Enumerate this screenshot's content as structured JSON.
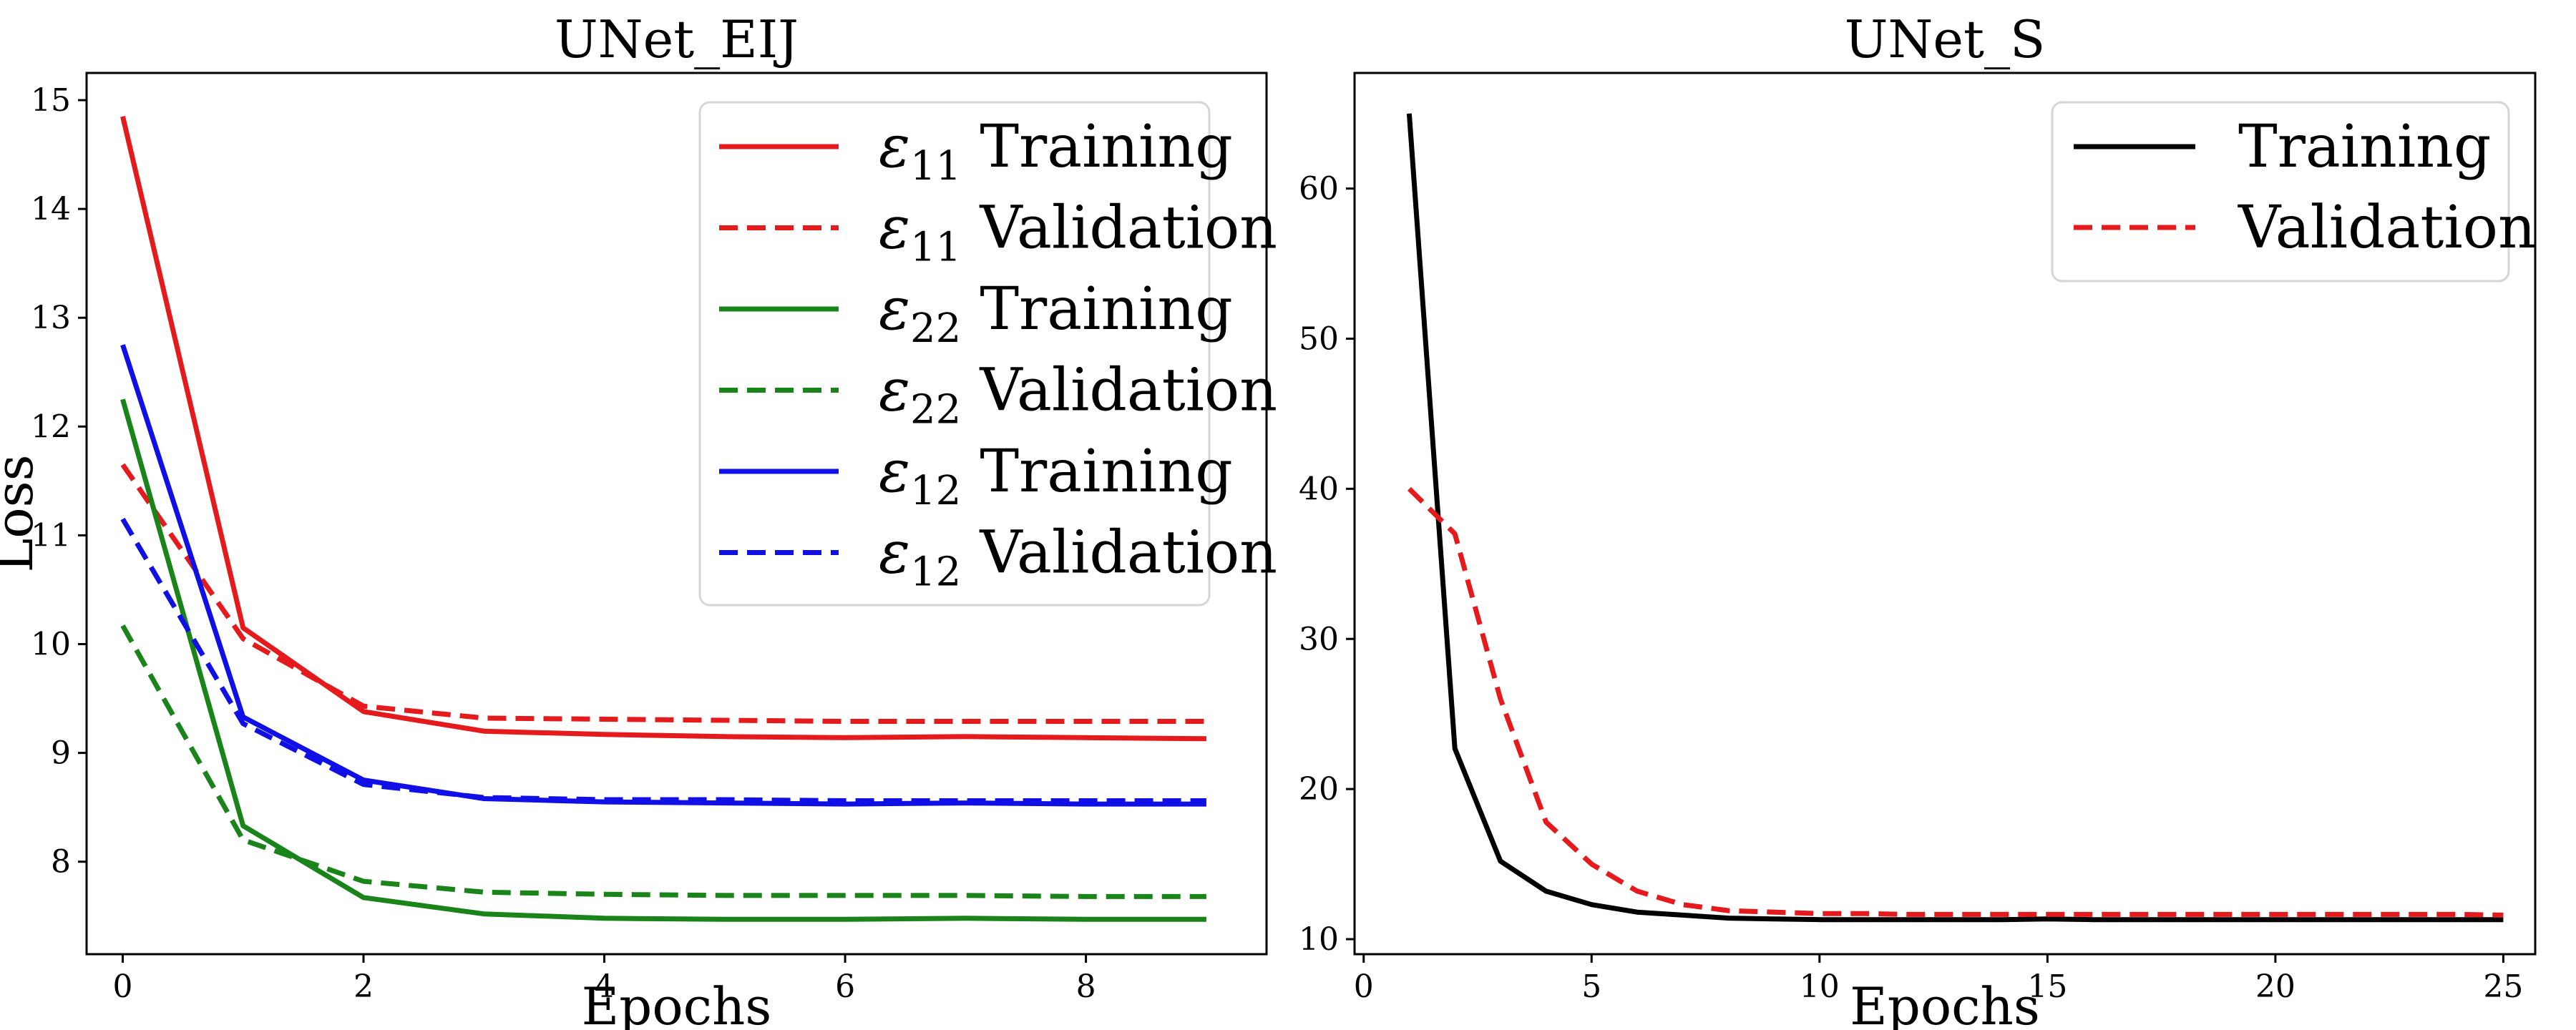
{
  "chart_data": [
    {
      "type": "line",
      "title": "UNet_EIJ",
      "xlabel": "Epochs",
      "ylabel": "Loss",
      "xlim": [
        -0.3,
        9.5
      ],
      "ylim": [
        7.15,
        15.25
      ],
      "xticks": [
        0,
        2,
        4,
        6,
        8
      ],
      "yticks": [
        8,
        9,
        10,
        11,
        12,
        13,
        14,
        15
      ],
      "legend_position": "top-right",
      "x": [
        0,
        1,
        2,
        3,
        4,
        5,
        6,
        7,
        8,
        9
      ],
      "series": [
        {
          "name": "ε11 Training",
          "symbol": "ε",
          "sub": "11",
          "label": "Training",
          "color": "#e41a1c",
          "dash": "solid",
          "values": [
            14.85,
            10.15,
            9.38,
            9.2,
            9.17,
            9.15,
            9.14,
            9.15,
            9.14,
            9.13
          ]
        },
        {
          "name": "ε11 Validation",
          "symbol": "ε",
          "sub": "11",
          "label": "Validation",
          "color": "#e41a1c",
          "dash": "dashed",
          "values": [
            11.65,
            10.05,
            9.43,
            9.32,
            9.31,
            9.3,
            9.29,
            9.29,
            9.29,
            9.29
          ]
        },
        {
          "name": "ε22 Training",
          "symbol": "ε",
          "sub": "22",
          "label": "Training",
          "color": "#1a841a",
          "dash": "solid",
          "values": [
            12.25,
            8.33,
            7.67,
            7.52,
            7.48,
            7.47,
            7.47,
            7.48,
            7.47,
            7.47
          ]
        },
        {
          "name": "ε22 Validation",
          "symbol": "ε",
          "sub": "22",
          "label": "Validation",
          "color": "#1a841a",
          "dash": "dashed",
          "values": [
            10.17,
            8.2,
            7.82,
            7.72,
            7.7,
            7.69,
            7.69,
            7.69,
            7.68,
            7.68
          ]
        },
        {
          "name": "ε12 Training",
          "symbol": "ε",
          "sub": "12",
          "label": "Training",
          "color": "#1010e6",
          "dash": "solid",
          "values": [
            12.75,
            9.33,
            8.75,
            8.58,
            8.55,
            8.54,
            8.53,
            8.54,
            8.53,
            8.53
          ]
        },
        {
          "name": "ε12 Validation",
          "symbol": "ε",
          "sub": "12",
          "label": "Validation",
          "color": "#1010e6",
          "dash": "dashed",
          "values": [
            11.15,
            9.27,
            8.71,
            8.59,
            8.57,
            8.57,
            8.56,
            8.56,
            8.56,
            8.56
          ]
        }
      ]
    },
    {
      "type": "line",
      "title": "UNet_S",
      "xlabel": "Epochs",
      "ylabel": "",
      "xlim": [
        -0.2,
        25.7
      ],
      "ylim": [
        9.0,
        67.7
      ],
      "xticks": [
        0,
        5,
        10,
        15,
        20,
        25
      ],
      "yticks": [
        10,
        20,
        30,
        40,
        50,
        60
      ],
      "legend_position": "top-right",
      "x": [
        1,
        2,
        3,
        4,
        5,
        6,
        7,
        8,
        9,
        10,
        11,
        12,
        13,
        14,
        15,
        16,
        17,
        18,
        19,
        20,
        21,
        22,
        23,
        24,
        25
      ],
      "series": [
        {
          "name": "Training",
          "symbol": "",
          "sub": "",
          "label": "Training",
          "color": "#000000",
          "dash": "solid",
          "values": [
            65.0,
            22.7,
            15.2,
            13.2,
            12.3,
            11.8,
            11.6,
            11.4,
            11.35,
            11.3,
            11.3,
            11.3,
            11.3,
            11.3,
            11.35,
            11.3,
            11.3,
            11.3,
            11.3,
            11.3,
            11.3,
            11.3,
            11.3,
            11.3,
            11.3
          ]
        },
        {
          "name": "Validation",
          "symbol": "",
          "sub": "",
          "label": "Validation",
          "color": "#e41a1c",
          "dash": "dashed",
          "values": [
            40.0,
            37.0,
            26.0,
            17.8,
            15.0,
            13.2,
            12.3,
            11.9,
            11.8,
            11.7,
            11.7,
            11.65,
            11.65,
            11.65,
            11.65,
            11.65,
            11.65,
            11.65,
            11.65,
            11.65,
            11.65,
            11.65,
            11.65,
            11.65,
            11.6
          ]
        }
      ]
    }
  ]
}
